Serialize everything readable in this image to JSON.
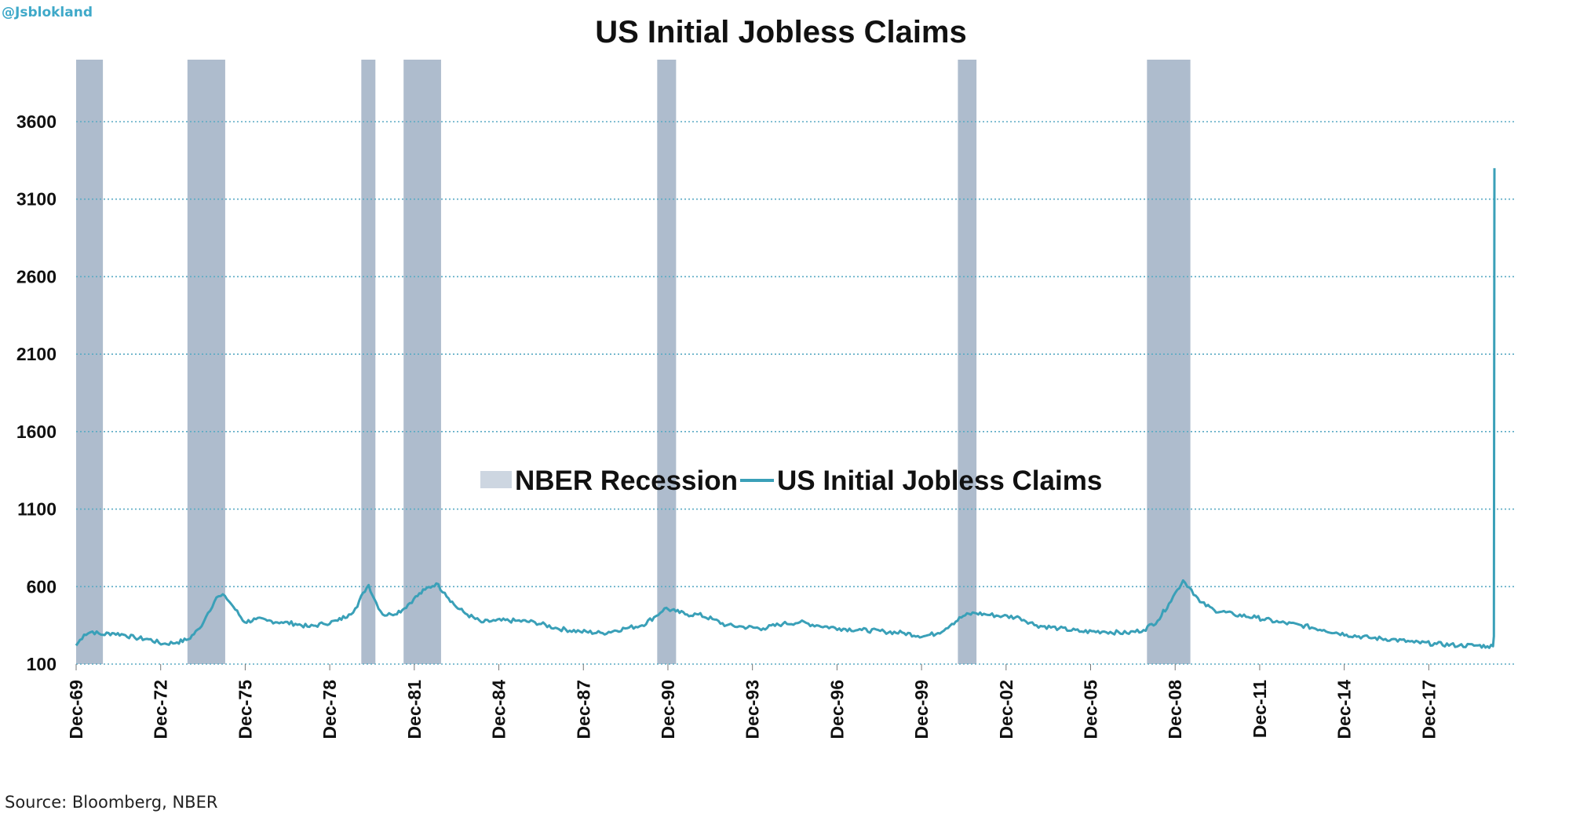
{
  "watermark": "@Jsblokland",
  "source": "Source: Bloomberg, NBER",
  "colors": {
    "recession": "#aebccd",
    "line": "#3aa0b8",
    "grid": "#5aaac4"
  },
  "chart_data": {
    "type": "line",
    "title": "US Initial Jobless Claims",
    "xlabel": "",
    "ylabel": "",
    "x_range": [
      1969.92,
      2020.25
    ],
    "ylim": [
      100,
      3600
    ],
    "y_ticks": [
      100,
      600,
      1100,
      1600,
      2100,
      2600,
      3100,
      3600
    ],
    "x_ticks": [
      {
        "label": "Dec-69",
        "x": 1969.92
      },
      {
        "label": "Dec-72",
        "x": 1972.92
      },
      {
        "label": "Dec-75",
        "x": 1975.92
      },
      {
        "label": "Dec-78",
        "x": 1978.92
      },
      {
        "label": "Dec-81",
        "x": 1981.92
      },
      {
        "label": "Dec-84",
        "x": 1984.92
      },
      {
        "label": "Dec-87",
        "x": 1987.92
      },
      {
        "label": "Dec-90",
        "x": 1990.92
      },
      {
        "label": "Dec-93",
        "x": 1993.92
      },
      {
        "label": "Dec-96",
        "x": 1996.92
      },
      {
        "label": "Dec-99",
        "x": 1999.92
      },
      {
        "label": "Dec-02",
        "x": 2002.92
      },
      {
        "label": "Dec-05",
        "x": 2005.92
      },
      {
        "label": "Dec-08",
        "x": 2008.92
      },
      {
        "label": "Dec-11",
        "x": 2011.92
      },
      {
        "label": "Dec-14",
        "x": 2014.92
      },
      {
        "label": "Dec-17",
        "x": 2017.92
      }
    ],
    "grid": "horizontal-dotted",
    "legend": {
      "placement": "center"
    },
    "recessions": {
      "name": "NBER Recession",
      "periods": [
        [
          1969.92,
          1970.87
        ],
        [
          1973.87,
          1975.21
        ],
        [
          1980.04,
          1980.54
        ],
        [
          1981.54,
          1982.87
        ],
        [
          1990.54,
          1991.21
        ],
        [
          2001.21,
          2001.87
        ],
        [
          2007.92,
          2009.46
        ]
      ]
    },
    "series": [
      {
        "name": "US Initial Jobless Claims",
        "x": [
          1969.92,
          1970.2,
          1970.5,
          1970.8,
          1971.2,
          1971.6,
          1972.0,
          1972.5,
          1973.0,
          1973.5,
          1973.9,
          1974.3,
          1974.6,
          1974.9,
          1975.2,
          1975.5,
          1975.9,
          1976.3,
          1976.7,
          1977.2,
          1977.7,
          1978.2,
          1978.7,
          1979.2,
          1979.6,
          1979.9,
          1980.1,
          1980.3,
          1980.5,
          1980.8,
          1981.1,
          1981.5,
          1981.9,
          1982.3,
          1982.7,
          1983.0,
          1983.4,
          1983.8,
          1984.3,
          1984.8,
          1985.5,
          1986.2,
          1987.0,
          1987.8,
          1988.6,
          1989.4,
          1990.0,
          1990.5,
          1990.8,
          1991.2,
          1991.6,
          1992.0,
          1992.5,
          1993.0,
          1993.6,
          1994.3,
          1995.0,
          1995.6,
          1996.2,
          1997.0,
          1997.8,
          1998.6,
          1999.3,
          2000.0,
          2000.5,
          2001.0,
          2001.4,
          2001.8,
          2002.2,
          2002.8,
          2003.4,
          2004.0,
          2004.8,
          2005.6,
          2006.4,
          2007.2,
          2007.8,
          2008.3,
          2008.7,
          2009.0,
          2009.2,
          2009.5,
          2009.8,
          2010.3,
          2011.0,
          2011.8,
          2012.6,
          2013.4,
          2014.2,
          2015.0,
          2015.8,
          2016.6,
          2017.4,
          2018.2,
          2019.0,
          2019.6,
          2020.0,
          2020.2,
          2020.23,
          2020.25
        ],
        "values": [
          220,
          290,
          310,
          290,
          300,
          290,
          270,
          260,
          230,
          240,
          260,
          330,
          430,
          530,
          540,
          470,
          370,
          390,
          380,
          370,
          360,
          340,
          360,
          380,
          420,
          470,
          560,
          610,
          520,
          420,
          420,
          450,
          520,
          580,
          620,
          560,
          470,
          420,
          370,
          380,
          380,
          370,
          330,
          310,
          300,
          330,
          350,
          410,
          460,
          440,
          420,
          420,
          390,
          350,
          340,
          330,
          360,
          370,
          350,
          330,
          320,
          310,
          300,
          280,
          300,
          360,
          410,
          430,
          420,
          410,
          400,
          350,
          330,
          310,
          310,
          300,
          320,
          380,
          490,
          580,
          640,
          580,
          500,
          450,
          420,
          400,
          370,
          350,
          320,
          290,
          270,
          260,
          240,
          230,
          220,
          220,
          215,
          215,
          280,
          3300
        ]
      }
    ]
  }
}
